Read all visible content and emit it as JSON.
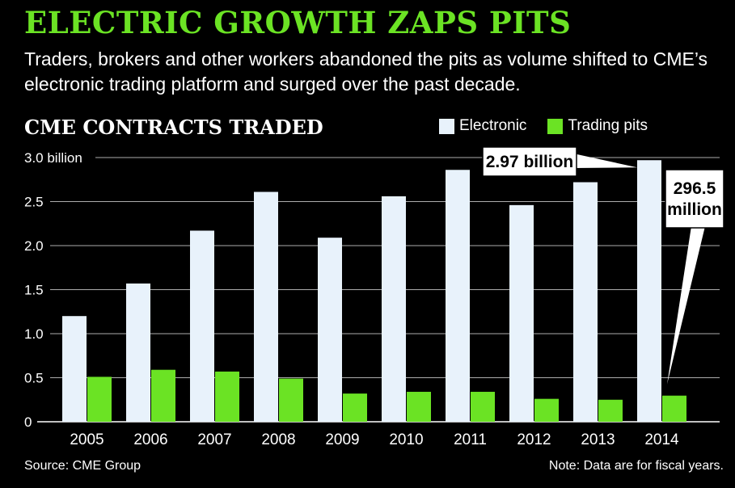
{
  "headline": "ELECTRIC GROWTH ZAPS PITS",
  "dek": "Traders, brokers and other workers abandoned the pits as volume shifted to CME’s electronic trading platform and surged over the past decade.",
  "source": "Source: CME Group",
  "note": "Note: Data are for fiscal years.",
  "colors": {
    "background": "#000000",
    "headline": "#6be324",
    "electronic": "#e8f2fb",
    "pits": "#6be324",
    "text": "#ffffff"
  },
  "chart_data": {
    "type": "bar",
    "title": "CME CONTRACTS TRADED",
    "xlabel": "",
    "ylabel": "",
    "categories": [
      "2005",
      "2006",
      "2007",
      "2008",
      "2009",
      "2010",
      "2011",
      "2012",
      "2013",
      "2014"
    ],
    "series": [
      {
        "name": "Electronic",
        "values": [
          1.2,
          1.57,
          2.17,
          2.61,
          2.09,
          2.56,
          2.86,
          2.46,
          2.72,
          2.97
        ]
      },
      {
        "name": "Trading pits",
        "values": [
          0.51,
          0.59,
          0.57,
          0.49,
          0.32,
          0.34,
          0.34,
          0.26,
          0.25,
          0.2965
        ]
      }
    ],
    "ylim": [
      0,
      3.0
    ],
    "yticks": [
      {
        "value": 0,
        "label": "0"
      },
      {
        "value": 0.5,
        "label": "0.5"
      },
      {
        "value": 1.0,
        "label": "1.0"
      },
      {
        "value": 1.5,
        "label": "1.5"
      },
      {
        "value": 2.0,
        "label": "2.0"
      },
      {
        "value": 2.5,
        "label": "2.5"
      },
      {
        "value": 3.0,
        "label": "3.0 billion"
      }
    ],
    "grid": true,
    "legend": "top-right",
    "annotations": [
      {
        "series": "Electronic",
        "category": "2014",
        "text": "2.97 billion"
      },
      {
        "series": "Trading pits",
        "category": "2014",
        "text": "296.5 million"
      }
    ]
  }
}
